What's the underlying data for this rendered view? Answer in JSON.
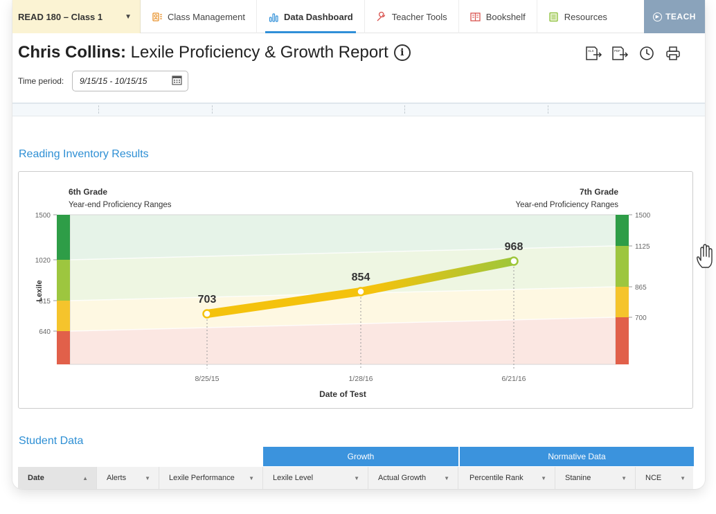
{
  "nav": {
    "class_label": "READ 180 – Class 1",
    "items": [
      {
        "label": "Class Management",
        "icon": "person-icon"
      },
      {
        "label": "Data Dashboard",
        "icon": "bar-chart-icon",
        "active": true
      },
      {
        "label": "Teacher Tools",
        "icon": "wrench-icon"
      },
      {
        "label": "Bookshelf",
        "icon": "book-icon"
      },
      {
        "label": "Resources",
        "icon": "document-icon"
      }
    ],
    "teach_label": "TEACH"
  },
  "header": {
    "student_name": "Chris Collins:",
    "report_title": " Lexile Proficiency & Growth Report",
    "time_period_label": "Time period:",
    "time_period_value": "9/15/15 - 10/15/15",
    "tools": [
      "xls-export-icon",
      "pdf-export-icon",
      "history-icon",
      "print-icon"
    ]
  },
  "sections": {
    "reading_inventory": "Reading Inventory Results",
    "student_data": "Student Data"
  },
  "chart_data": {
    "type": "line",
    "left_title": "6th Grade",
    "left_subtitle": "Year-end Proficiency Ranges",
    "right_title": "7th Grade",
    "right_subtitle": "Year-end Proficiency Ranges",
    "xlabel": "Date of Test",
    "ylabel": "Lexile",
    "x": [
      "8/25/15",
      "1/28/16",
      "6/21/16"
    ],
    "values": [
      703,
      854,
      968
    ],
    "left_ticks": [
      1500,
      1020,
      815,
      640
    ],
    "right_ticks": [
      1500,
      1125,
      865,
      700
    ],
    "band_colors": {
      "advanced": "#2e9d47",
      "proficient": "#9dc63f",
      "basic": "#f5c42c",
      "below": "#e1604a"
    }
  },
  "table": {
    "groups": [
      "Growth",
      "Normative Data"
    ],
    "columns": [
      "Date",
      "Alerts",
      "Lexile Performance",
      "Lexile Level",
      "Actual Growth",
      "Percentile Rank",
      "Stanine",
      "NCE"
    ]
  }
}
